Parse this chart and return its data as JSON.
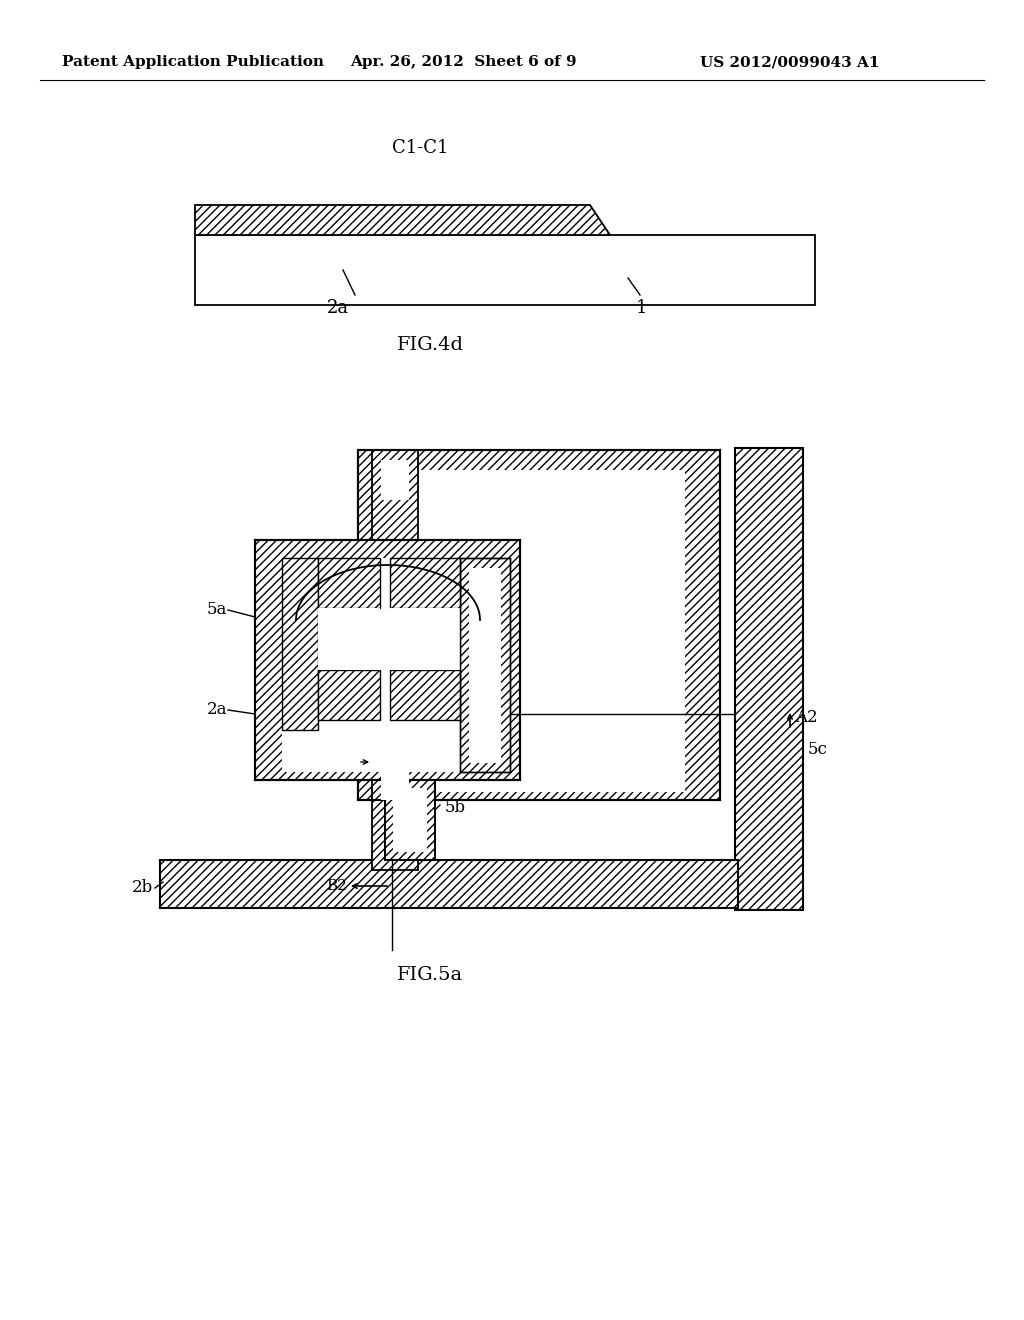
{
  "bg": "#ffffff",
  "lc": "#000000",
  "header_left": "Patent Application Publication",
  "header_center": "Apr. 26, 2012  Sheet 6 of 9",
  "header_right": "US 2012/0099043 A1",
  "fig4d": "FIG.4d",
  "fig5a": "FIG.5a",
  "c1c1": "C1-C1",
  "hatch": "////"
}
